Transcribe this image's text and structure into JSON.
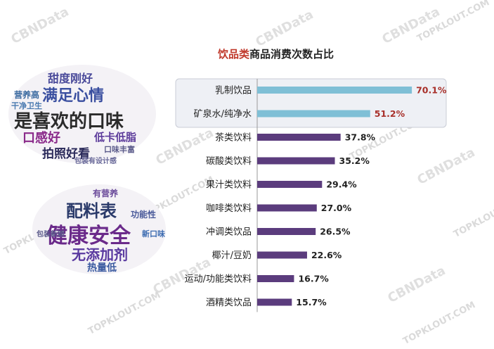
{
  "watermarks": {
    "topklout": "TOPKLOUT.COM",
    "cbndata": "CBNData"
  },
  "word_cloud_1": [
    {
      "text": "是喜欢的口味",
      "color": "#2b2b2b"
    },
    {
      "text": "满足心情",
      "color": "#3a4fa0"
    },
    {
      "text": "甜度刚好",
      "color": "#4a4a9a"
    },
    {
      "text": "口感好",
      "color": "#8a2a8a"
    },
    {
      "text": "拍照好看",
      "color": "#2a2a5a"
    },
    {
      "text": "低卡低脂",
      "color": "#5b3a9a"
    },
    {
      "text": "营养高",
      "color": "#3a6aa0"
    },
    {
      "text": "干净卫生",
      "color": "#4a7ab0"
    },
    {
      "text": "口味丰富",
      "color": "#5a5a8a"
    },
    {
      "text": "包装有设计感",
      "color": "#6a6a9a"
    }
  ],
  "word_cloud_2": [
    {
      "text": "健康安全",
      "color": "#6a2a8a"
    },
    {
      "text": "配料表",
      "color": "#2a3a6a"
    },
    {
      "text": "无添加剂",
      "color": "#5a3aa0"
    },
    {
      "text": "热量低",
      "color": "#3a5aa0"
    },
    {
      "text": "功能性",
      "color": "#4a5a9a"
    },
    {
      "text": "有营养",
      "color": "#6a4a9a"
    },
    {
      "text": "新口味",
      "color": "#3a6ab0"
    },
    {
      "text": "包装新颖",
      "color": "#5a5a8a"
    }
  ],
  "chart_data": {
    "type": "bar",
    "orientation": "horizontal",
    "title_accent": "饮品类",
    "title_rest": "商品消费次数占比",
    "categories": [
      "乳制饮品",
      "矿泉水/纯净水",
      "茶类饮料",
      "碳酸类饮料",
      "果汁类饮料",
      "咖啡类饮料",
      "冲调类饮品",
      "椰汁/豆奶",
      "运动/功能类饮料",
      "酒精类饮品"
    ],
    "values": [
      70.1,
      51.2,
      37.8,
      35.2,
      29.4,
      27.0,
      26.5,
      22.6,
      16.7,
      15.7
    ],
    "value_labels": [
      "70.1%",
      "51.2%",
      "37.8%",
      "35.2%",
      "29.4%",
      "27.0%",
      "26.5%",
      "22.6%",
      "16.7%",
      "15.7%"
    ],
    "highlighted_count": 2,
    "colors": {
      "highlight_bar": "#7fbfd6",
      "normal_bar": "#5b3c7d",
      "highlight_label": "#a8302a",
      "normal_label": "#222222",
      "highlight_box": "#eef0f5",
      "highlight_box_border": "#c9ccd6"
    },
    "xlim": [
      0,
      100
    ],
    "grid": false,
    "legend": "none"
  }
}
